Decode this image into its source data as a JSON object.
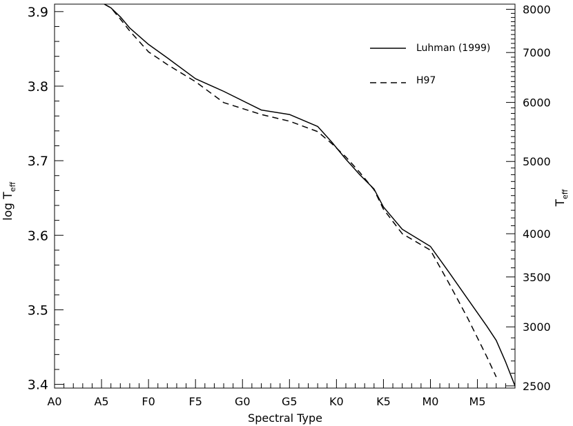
{
  "chart_data": {
    "type": "line",
    "xlabel": "Spectral Type",
    "ylabel_left": "log T",
    "ylabel_left_sub": "eff",
    "ylabel_right": "T",
    "ylabel_right_sub": "eff",
    "x_index_range": [
      0,
      49
    ],
    "ylim": [
      3.395,
      3.91
    ],
    "x_tick_labels": [
      {
        "label": "A0",
        "index": 0
      },
      {
        "label": "A5",
        "index": 5
      },
      {
        "label": "F0",
        "index": 10
      },
      {
        "label": "F5",
        "index": 15
      },
      {
        "label": "G0",
        "index": 20
      },
      {
        "label": "G5",
        "index": 25
      },
      {
        "label": "K0",
        "index": 30
      },
      {
        "label": "K5",
        "index": 35
      },
      {
        "label": "M0",
        "index": 40
      },
      {
        "label": "M5",
        "index": 45
      }
    ],
    "left_ticks": [
      "3.4",
      "3.5",
      "3.6",
      "3.7",
      "3.8",
      "3.9"
    ],
    "right_ticks": [
      "2500",
      "3000",
      "3500",
      "4000",
      "5000",
      "6000",
      "7000",
      "8000"
    ],
    "legend_placement": "top-right",
    "series": [
      {
        "name": "Luhman (1999)",
        "style": "solid",
        "x": [
          5.3,
          6.0,
          7.0,
          8.0,
          10.0,
          12.0,
          15.0,
          18.0,
          22.0,
          25.0,
          28.0,
          29.5,
          31.0,
          32.5,
          34.0,
          35.0,
          37.0,
          40.0,
          42.0,
          44.0,
          46.0,
          47.0,
          48.0,
          49.0
        ],
        "y": [
          3.91,
          3.905,
          3.893,
          3.878,
          3.856,
          3.838,
          3.81,
          3.793,
          3.768,
          3.762,
          3.746,
          3.725,
          3.702,
          3.681,
          3.662,
          3.638,
          3.608,
          3.585,
          3.55,
          3.514,
          3.478,
          3.459,
          3.43,
          3.398
        ]
      },
      {
        "name": "H97",
        "style": "dashed",
        "x": [
          5.3,
          6.0,
          7.0,
          8.0,
          10.0,
          12.0,
          15.0,
          18.0,
          22.0,
          25.0,
          28.0,
          29.5,
          31.0,
          32.5,
          34.0,
          35.0,
          37.0,
          40.0,
          42.0,
          44.0,
          46.0,
          47.0
        ],
        "y": [
          3.91,
          3.905,
          3.89,
          3.874,
          3.846,
          3.829,
          3.806,
          3.778,
          3.762,
          3.753,
          3.739,
          3.723,
          3.705,
          3.684,
          3.661,
          3.635,
          3.602,
          3.58,
          3.535,
          3.488,
          3.437,
          3.41
        ]
      }
    ]
  }
}
